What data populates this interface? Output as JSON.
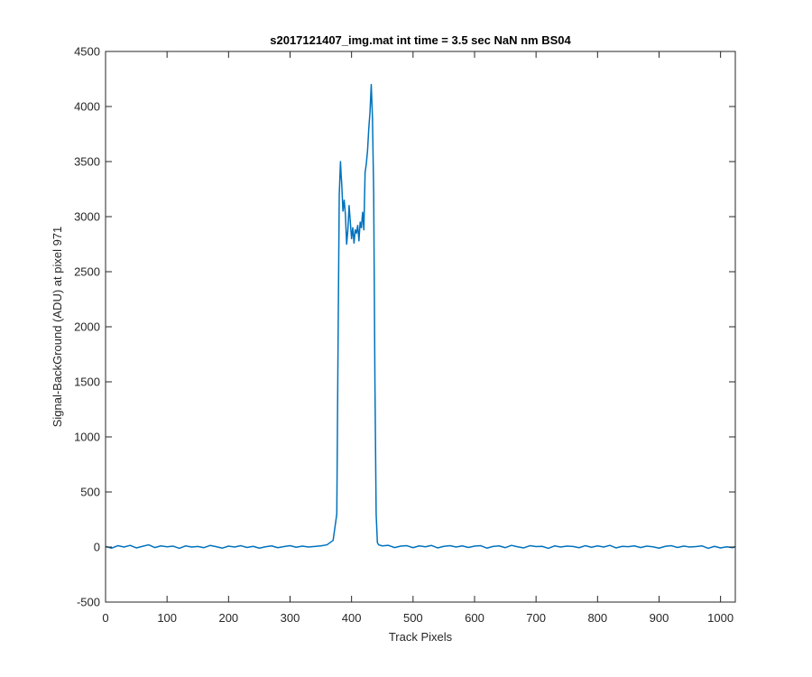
{
  "chart_data": {
    "type": "line",
    "title": "s2017121407_img.mat int time = 3.5 sec  NaN nm BS04",
    "xlabel": "Track Pixels",
    "ylabel": "Signal-BackGround (ADU) at pixel 971",
    "xlim": [
      0,
      1024
    ],
    "ylim": [
      -500,
      4500
    ],
    "xticks": [
      0,
      100,
      200,
      300,
      400,
      500,
      600,
      700,
      800,
      900,
      1000
    ],
    "yticks": [
      -500,
      0,
      500,
      1000,
      1500,
      2000,
      2500,
      3000,
      3500,
      4000,
      4500
    ],
    "grid": false,
    "legend": "none",
    "series": [
      {
        "color": "#0072BD",
        "x": [
          0,
          10,
          20,
          30,
          40,
          50,
          60,
          70,
          80,
          90,
          100,
          110,
          120,
          130,
          140,
          150,
          160,
          170,
          180,
          190,
          200,
          210,
          220,
          230,
          240,
          250,
          260,
          270,
          280,
          290,
          300,
          310,
          320,
          330,
          340,
          350,
          360,
          370,
          376,
          378,
          380,
          382,
          383,
          384,
          386,
          388,
          390,
          392,
          394,
          396,
          398,
          400,
          402,
          404,
          406,
          408,
          410,
          412,
          414,
          416,
          418,
          420,
          422,
          424,
          426,
          428,
          430,
          432,
          434,
          436,
          438,
          440,
          442,
          444,
          450,
          460,
          470,
          480,
          490,
          500,
          510,
          520,
          530,
          540,
          550,
          560,
          570,
          580,
          590,
          600,
          610,
          620,
          630,
          640,
          650,
          660,
          670,
          680,
          690,
          700,
          710,
          720,
          730,
          740,
          750,
          760,
          770,
          780,
          790,
          800,
          810,
          820,
          830,
          840,
          850,
          860,
          870,
          880,
          890,
          900,
          910,
          920,
          930,
          940,
          950,
          960,
          970,
          980,
          990,
          1000,
          1010,
          1020,
          1024
        ],
        "y": [
          5,
          -10,
          12,
          0,
          15,
          -8,
          6,
          20,
          -5,
          10,
          2,
          8,
          -12,
          10,
          0,
          5,
          -6,
          14,
          3,
          -10,
          8,
          0,
          12,
          -4,
          6,
          -10,
          2,
          10,
          -6,
          4,
          12,
          -2,
          8,
          0,
          5,
          10,
          20,
          60,
          300,
          1800,
          3200,
          3500,
          3380,
          3300,
          3050,
          3150,
          3020,
          2750,
          2880,
          3100,
          2950,
          2800,
          2900,
          2760,
          2880,
          2850,
          2920,
          2780,
          2950,
          2900,
          3040,
          2880,
          3400,
          3480,
          3600,
          3800,
          3950,
          4200,
          3900,
          3200,
          1500,
          300,
          40,
          20,
          10,
          15,
          -5,
          8,
          12,
          -6,
          10,
          2,
          14,
          -8,
          6,
          12,
          0,
          10,
          -4,
          8,
          12,
          -10,
          5,
          10,
          -6,
          15,
          2,
          -8,
          12,
          4,
          6,
          -12,
          10,
          0,
          8,
          5,
          -6,
          12,
          -2,
          10,
          0,
          15,
          -8,
          6,
          3,
          10,
          -5,
          8,
          2,
          -10,
          6,
          12,
          -4,
          8,
          0,
          4,
          10,
          -12,
          6,
          -8,
          2,
          -6,
          5
        ]
      }
    ]
  }
}
